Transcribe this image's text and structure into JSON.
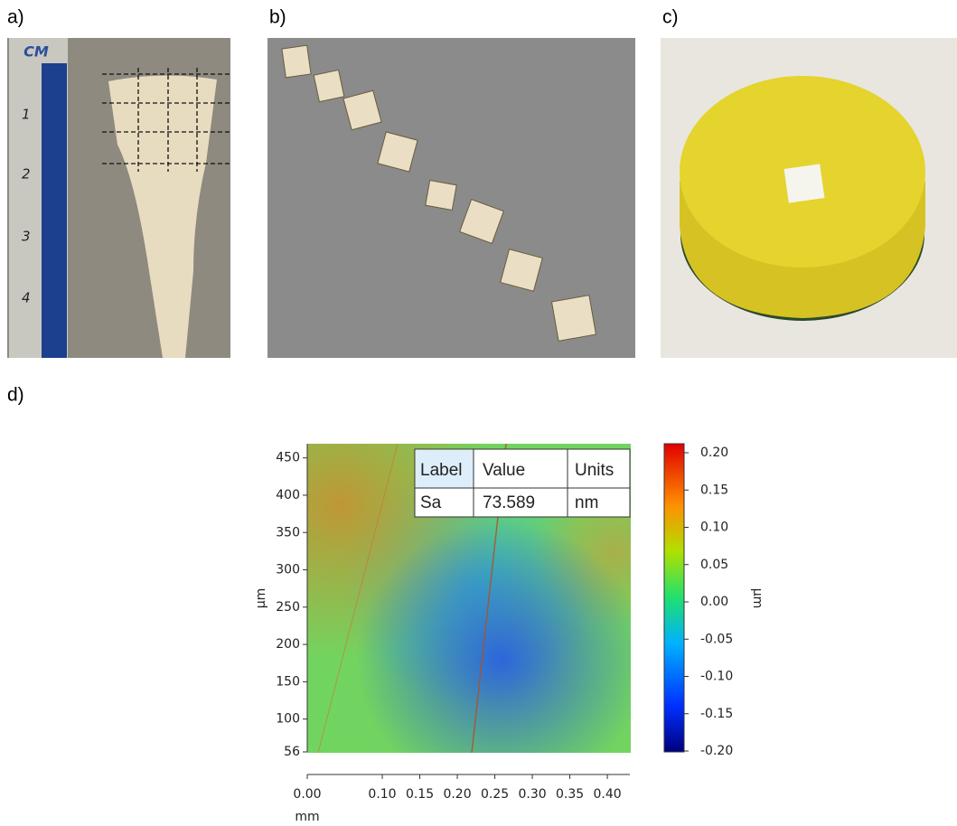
{
  "panel_labels": [
    "a)",
    "b)",
    "c)",
    "d)"
  ],
  "ruler": {
    "unit": "CM",
    "marks": [
      "1",
      "2",
      "3",
      "4"
    ]
  },
  "chart_data": {
    "type": "heatmap",
    "xlabel": "mm",
    "ylabel": "µm",
    "xlim": [
      0,
      0.43
    ],
    "ylim": [
      56,
      469
    ],
    "xticks": [
      {
        "value": 0,
        "label": "0.00"
      },
      {
        "value": 0.1,
        "label": "0.10"
      },
      {
        "value": 0.15,
        "label": "0.15"
      },
      {
        "value": 0.2,
        "label": "0.20"
      },
      {
        "value": 0.25,
        "label": "0.25"
      },
      {
        "value": 0.3,
        "label": "0.30"
      },
      {
        "value": 0.35,
        "label": "0.35"
      },
      {
        "value": 0.4,
        "label": "0.40"
      }
    ],
    "yticks": [
      450,
      400,
      350,
      300,
      250,
      200,
      150,
      100,
      56
    ],
    "colorbar": {
      "label": "µm",
      "lim": [
        -0.2,
        0.2
      ],
      "ticks": [
        {
          "value": 0.2,
          "label": "0.20"
        },
        {
          "value": 0.15,
          "label": "0.15"
        },
        {
          "value": 0.1,
          "label": "0.10"
        },
        {
          "value": 0.05,
          "label": "0.05"
        },
        {
          "value": 0,
          "label": "0.00"
        },
        {
          "value": -0.05,
          "label": "-0.05"
        },
        {
          "value": -0.1,
          "label": "-0.10"
        },
        {
          "value": -0.15,
          "label": "-0.15"
        },
        {
          "value": -0.2,
          "label": "-0.20"
        }
      ]
    },
    "table": {
      "header": [
        "Label",
        "Value",
        "Units"
      ],
      "rows": [
        [
          "Sa",
          73.589,
          "nm"
        ]
      ]
    }
  }
}
